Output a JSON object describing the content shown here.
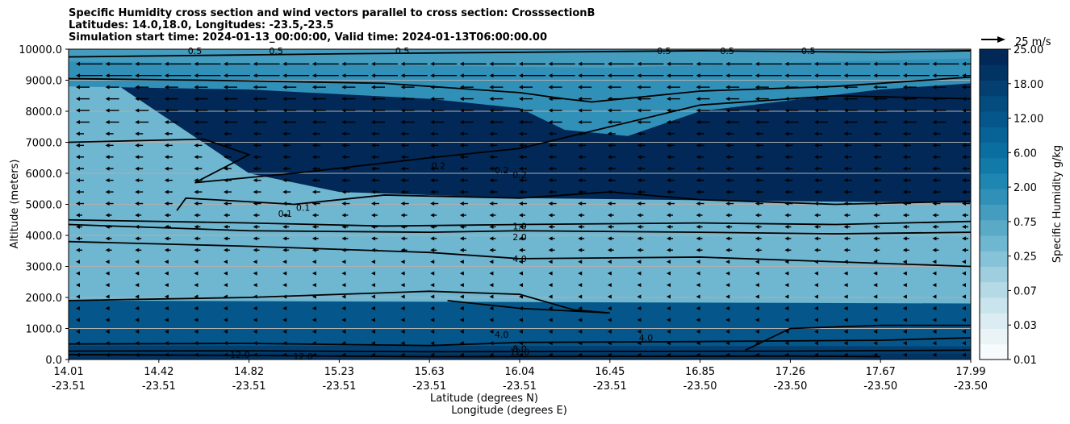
{
  "title_lines": [
    "Specific Humidity cross section and wind vectors parallel to cross section: CrosssectionB",
    "Latitudes: 14.0,18.0, Longitudes: -23.5,-23.5",
    "Simulation start time: 2024-01-13_00:00:00, Valid time: 2024-01-13T06:00:00.00"
  ],
  "chart_data": {
    "type": "heatmap",
    "subtype": "filled contour cross section with contour lines and wind quiver",
    "ylabel": "Altitude (meters)",
    "xlabel_lines": [
      "Latitude (degrees N)",
      "Longitude (degrees E)"
    ],
    "ylim": [
      0,
      10000
    ],
    "y_ticks": [
      "0.0",
      "1000.0",
      "2000.0",
      "3000.0",
      "4000.0",
      "5000.0",
      "6000.0",
      "7000.0",
      "8000.0",
      "9000.0",
      "10000.0"
    ],
    "x_ticks": [
      {
        "lat": "14.01",
        "lon": "-23.51"
      },
      {
        "lat": "14.42",
        "lon": "-23.51"
      },
      {
        "lat": "14.82",
        "lon": "-23.51"
      },
      {
        "lat": "15.23",
        "lon": "-23.51"
      },
      {
        "lat": "15.63",
        "lon": "-23.51"
      },
      {
        "lat": "16.04",
        "lon": "-23.51"
      },
      {
        "lat": "16.45",
        "lon": "-23.51"
      },
      {
        "lat": "16.85",
        "lon": "-23.50"
      },
      {
        "lat": "17.26",
        "lon": "-23.50"
      },
      {
        "lat": "17.67",
        "lon": "-23.50"
      },
      {
        "lat": "17.99",
        "lon": "-23.50"
      }
    ],
    "colorbar": {
      "label": "Specific Humidity g/kg",
      "ticks": [
        "0.01",
        "0.03",
        "0.07",
        "0.25",
        "0.75",
        "2.00",
        "6.00",
        "12.00",
        "18.00",
        "25.00"
      ],
      "levels": 20,
      "colors": [
        "#f7fbfd",
        "#eaf4f7",
        "#dbedf2",
        "#c9e4ec",
        "#b5dae6",
        "#9fcfdf",
        "#87c3d8",
        "#6fb6d0",
        "#5aa9c7",
        "#449cbe",
        "#3190b8",
        "#1f85b1",
        "#127aa9",
        "#0b6ea0",
        "#076295",
        "#05568a",
        "#044b7e",
        "#034071",
        "#023463",
        "#012857"
      ]
    },
    "contour_labels": [
      "0.5",
      "0.5",
      "0.5",
      "0.5",
      "0.5",
      "0.5",
      "0.2",
      "0.2",
      "0.2",
      "0.1",
      "0.1",
      "1.0",
      "2.0",
      "4.0",
      "4.0",
      "4.0",
      "8.0",
      "12.0",
      "12.0",
      "12.0"
    ],
    "quiver_key": "25 m/s",
    "grid": "horizontal lines at y ticks",
    "wind_direction": "westward (negative along section) aloft, weak below 3000 m"
  }
}
